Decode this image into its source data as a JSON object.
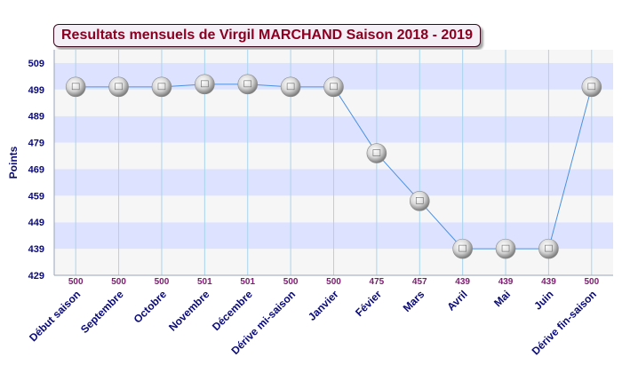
{
  "chart_data": {
    "type": "line",
    "title": "Resultats mensuels de Virgil MARCHAND Saison 2018 - 2019",
    "ylabel": "Points",
    "xlabel": "",
    "categories": [
      "Début saison",
      "Septembre",
      "Octobre",
      "Novembre",
      "Décembre",
      "Dérive mi-saison",
      "Janvier",
      "Févier",
      "Mars",
      "Avril",
      "Mai",
      "Juin",
      "Dérive fin-saison"
    ],
    "values": [
      500,
      500,
      500,
      501,
      501,
      500,
      500,
      475,
      457,
      439,
      439,
      439,
      500
    ],
    "ylim": [
      429,
      514
    ],
    "yticks": [
      429,
      439,
      449,
      459,
      469,
      479,
      489,
      499,
      509
    ],
    "grid": true,
    "legend": "none",
    "colors": {
      "line": "#4a90e2",
      "band_blue": "#dde3ff",
      "band_white": "#f6f6f6",
      "vgrid": "#a8d4ee",
      "title_text": "#8b0020",
      "data_label": "#7a1d6e",
      "axis_text": "#0a0a7a"
    }
  }
}
